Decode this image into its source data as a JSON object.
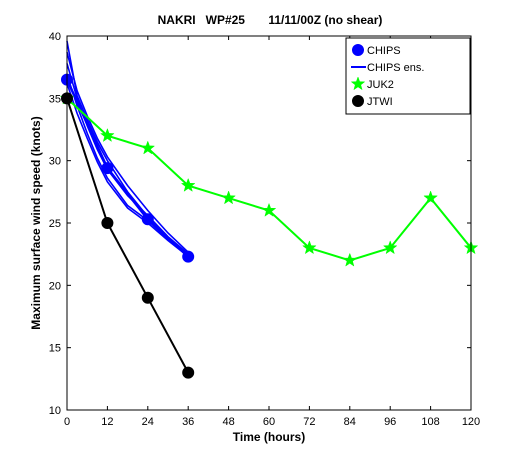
{
  "chart_data": {
    "type": "line",
    "title": "NAKRI   WP#25       11/11/00Z (no shear)",
    "xlabel": "Time (hours)",
    "ylabel": "Maximum surface wind speed (knots)",
    "xlim": [
      0,
      120
    ],
    "ylim": [
      10,
      40
    ],
    "xticks": [
      0,
      12,
      24,
      36,
      48,
      60,
      72,
      84,
      96,
      108,
      120
    ],
    "yticks": [
      10,
      15,
      20,
      25,
      30,
      35,
      40
    ],
    "grid": false,
    "legend_position": "top-right",
    "legend": [
      "CHIPS",
      "CHIPS ens.",
      "JUK2",
      "JTWI"
    ],
    "series": [
      {
        "name": "CHIPS",
        "color": "#0000ff",
        "marker": "circle",
        "x": [
          0,
          12,
          24,
          36
        ],
        "y": [
          36.5,
          29.4,
          25.3,
          22.3
        ]
      },
      {
        "name": "CHIPS ens.",
        "color": "#0000ff",
        "marker": "none",
        "lines": [
          {
            "x": [
              0,
              3,
              6,
              9,
              12,
              18,
              24,
              30,
              37
            ],
            "y": [
              39.6,
              35.2,
              33.3,
              31.5,
              30.0,
              27.5,
              25.5,
              23.8,
              22.2
            ]
          },
          {
            "x": [
              0,
              3,
              6,
              9,
              12,
              18,
              24,
              30,
              37
            ],
            "y": [
              38.7,
              35.6,
              33.6,
              31.8,
              30.3,
              28.0,
              26.0,
              24.2,
              22.4
            ]
          },
          {
            "x": [
              0,
              3,
              6,
              9,
              12,
              18,
              24,
              30,
              37
            ],
            "y": [
              37.8,
              35.0,
              32.8,
              30.9,
              29.3,
              27.2,
              25.6,
              23.9,
              22.3
            ]
          },
          {
            "x": [
              0,
              3,
              6,
              9,
              12,
              18,
              24,
              30,
              37
            ],
            "y": [
              36.9,
              34.4,
              32.2,
              30.2,
              28.6,
              26.4,
              25.2,
              23.7,
              22.2
            ]
          },
          {
            "x": [
              0,
              3,
              6,
              9,
              12,
              18,
              24,
              30,
              37
            ],
            "y": [
              36.2,
              33.8,
              31.8,
              29.9,
              28.3,
              26.2,
              25.0,
              23.6,
              22.1
            ]
          }
        ]
      },
      {
        "name": "JUK2",
        "color": "#00ff00",
        "marker": "star",
        "x": [
          0,
          12,
          24,
          36,
          48,
          60,
          72,
          84,
          96,
          108,
          120
        ],
        "y": [
          35,
          32,
          31,
          28,
          27,
          26,
          23,
          22,
          23,
          27,
          23
        ]
      },
      {
        "name": "JTWI",
        "color": "#000000",
        "marker": "circle",
        "x": [
          0,
          12,
          24,
          36
        ],
        "y": [
          35,
          25,
          19,
          13
        ]
      }
    ]
  }
}
